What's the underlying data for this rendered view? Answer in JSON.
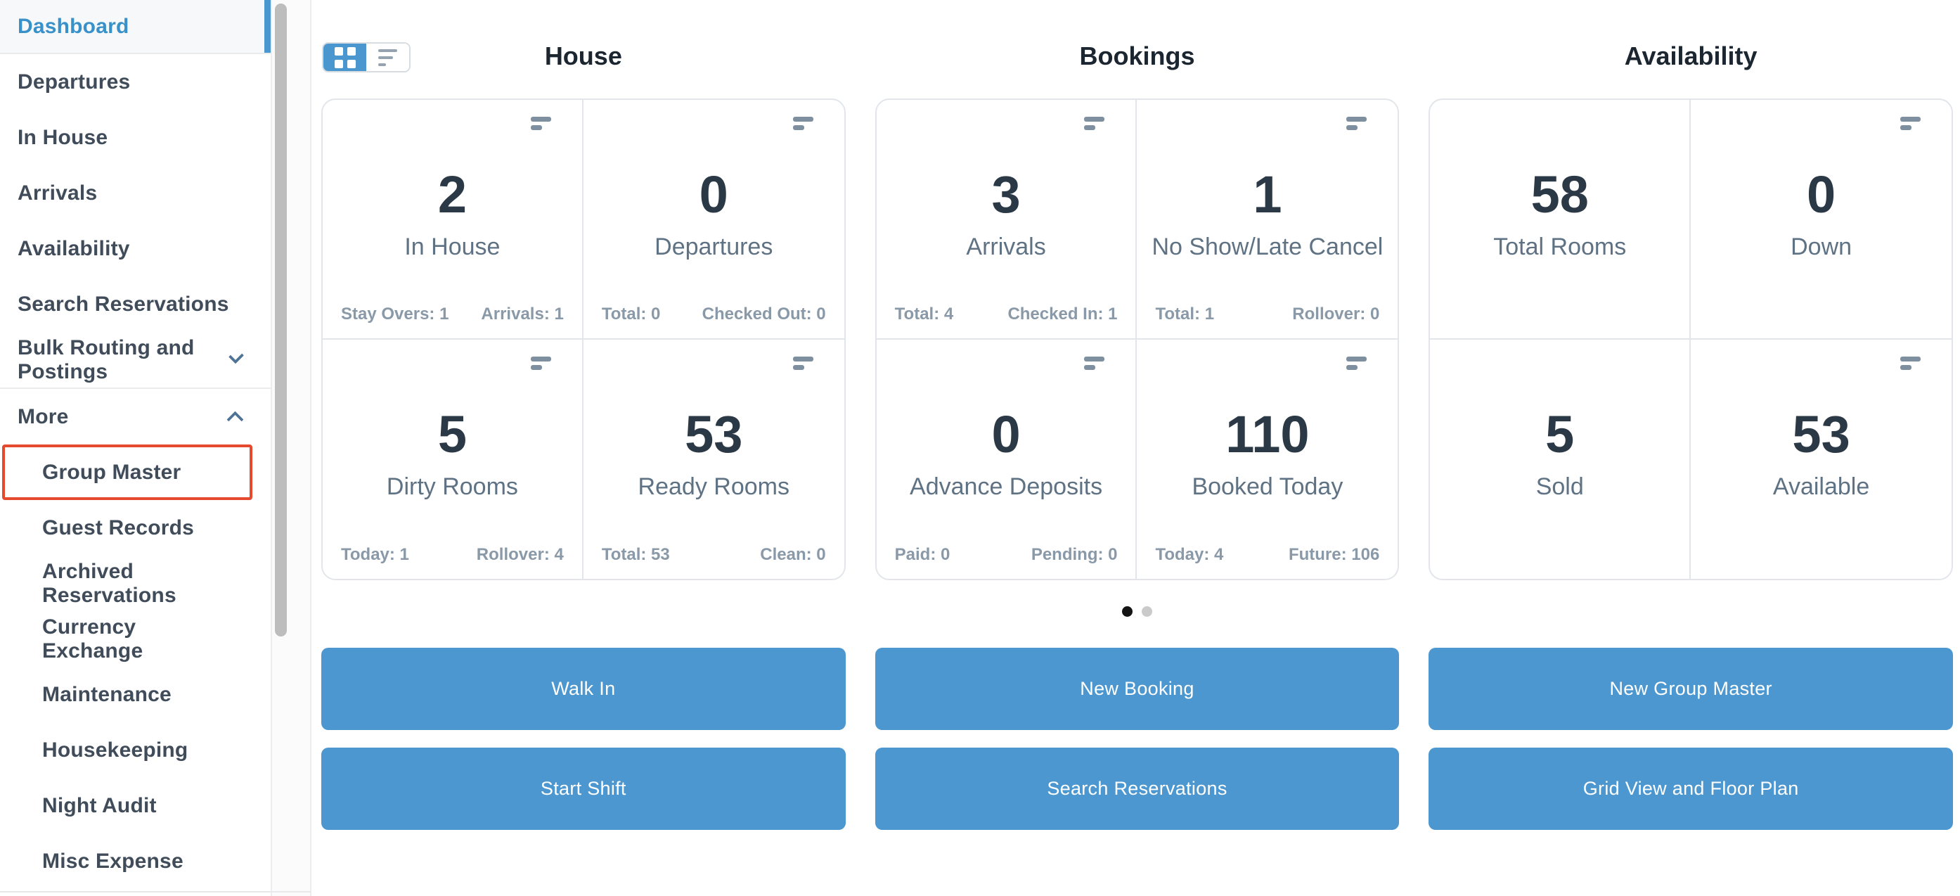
{
  "colors": {
    "accent_blue": "#4A96CE",
    "active_link_blue": "#3991C9",
    "highlight_red": "#E5492E",
    "button_blue": "#4C97CF",
    "dot_active": "#141414",
    "dot_inactive": "#CACACA"
  },
  "sidebar": {
    "items": [
      {
        "label": "Dashboard",
        "state": "active"
      },
      {
        "label": "Departures"
      },
      {
        "label": "In House"
      },
      {
        "label": "Arrivals"
      },
      {
        "label": "Availability"
      },
      {
        "label": "Search Reservations"
      },
      {
        "label": "Bulk Routing and Postings",
        "chevron": "down"
      },
      {
        "label": "More",
        "chevron": "up"
      },
      {
        "label": "Group Master",
        "submenu": true,
        "highlight": "red-box"
      },
      {
        "label": "Guest Records",
        "submenu": true
      },
      {
        "label": "Archived Reservations",
        "submenu": true
      },
      {
        "label": "Currency Exchange",
        "submenu": true
      },
      {
        "label": "Maintenance",
        "submenu": true
      },
      {
        "label": "Housekeeping",
        "submenu": true
      },
      {
        "label": "Night Audit",
        "submenu": true
      },
      {
        "label": "Misc Expense",
        "submenu": true
      }
    ]
  },
  "view_toggle": {
    "options": [
      {
        "icon": "grid-view-icon",
        "active": true
      },
      {
        "icon": "list-view-icon",
        "active": false
      }
    ]
  },
  "columns": [
    {
      "title": "House",
      "tiles": [
        {
          "value": "2",
          "label": "In House",
          "menu_icon": true,
          "footer_left": "Stay Overs: 1",
          "footer_right": "Arrivals: 1"
        },
        {
          "value": "0",
          "label": "Departures",
          "menu_icon": true,
          "footer_left": "Total: 0",
          "footer_right": "Checked Out: 0"
        },
        {
          "value": "5",
          "label": "Dirty Rooms",
          "menu_icon": true,
          "footer_left": "Today: 1",
          "footer_right": "Rollover: 4"
        },
        {
          "value": "53",
          "label": "Ready Rooms",
          "menu_icon": true,
          "footer_left": "Total: 53",
          "footer_right": "Clean: 0"
        }
      ]
    },
    {
      "title": "Bookings",
      "tiles": [
        {
          "value": "3",
          "label": "Arrivals",
          "menu_icon": true,
          "footer_left": "Total: 4",
          "footer_right": "Checked In: 1"
        },
        {
          "value": "1",
          "label": "No Show/Late Cancel",
          "menu_icon": true,
          "footer_left": "Total: 1",
          "footer_right": "Rollover: 0"
        },
        {
          "value": "0",
          "label": "Advance Deposits",
          "menu_icon": true,
          "footer_left": "Paid: 0",
          "footer_right": "Pending: 0"
        },
        {
          "value": "110",
          "label": "Booked Today",
          "menu_icon": true,
          "footer_left": "Today: 4",
          "footer_right": "Future: 106"
        }
      ]
    },
    {
      "title": "Availability",
      "tiles": [
        {
          "value": "58",
          "label": "Total Rooms",
          "menu_icon": false
        },
        {
          "value": "0",
          "label": "Down",
          "menu_icon": true
        },
        {
          "value": "5",
          "label": "Sold",
          "menu_icon": false
        },
        {
          "value": "53",
          "label": "Available",
          "menu_icon": true
        }
      ]
    }
  ],
  "pagination": {
    "dots": [
      {
        "active": true
      },
      {
        "active": false
      }
    ]
  },
  "actions": [
    {
      "label": "Walk In"
    },
    {
      "label": "New Booking"
    },
    {
      "label": "New Group Master"
    },
    {
      "label": "Start Shift"
    },
    {
      "label": "Search Reservations"
    },
    {
      "label": "Grid View and Floor Plan"
    }
  ]
}
